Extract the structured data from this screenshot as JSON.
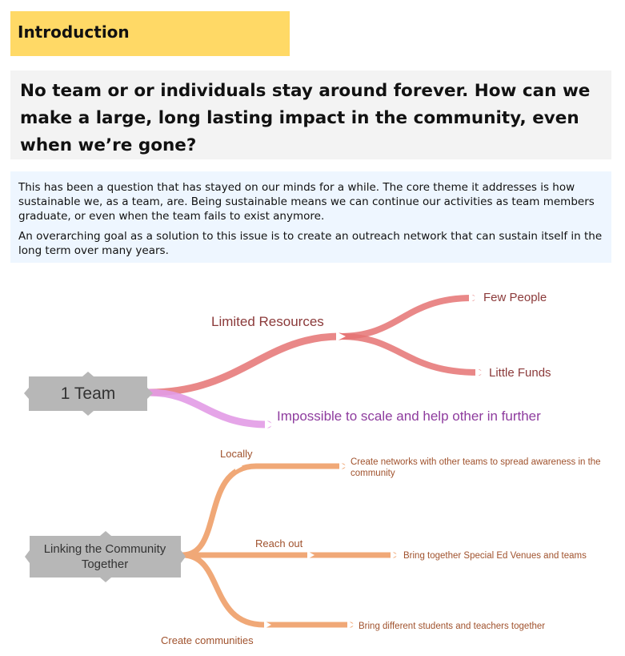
{
  "heading": "Introduction",
  "question": "No team or or individuals stay around forever.  How can we make a large, long lasting impact in the community, even when we’re gone?",
  "paragraphs": [
    "This has been a question that has stayed on our minds for a while. The core theme it addresses is how sustainable we, as a team, are. Being sustainable means we can continue our activities as team members graduate, or even when the team fails to exist anymore.",
    "An overarching goal as a solution to this issue is to create an outreach network that can sustain itself in the long term over many years."
  ],
  "diagram1": {
    "root": "1 Team",
    "branch_resources": "Limited Resources",
    "leaf_people": "Few People",
    "leaf_funds": "Little Funds",
    "branch_scale": "Impossible to scale and help other in further",
    "colors": {
      "resources": "#e57373",
      "scale": "#e29be6",
      "root_fill": "#b7b7b7"
    }
  },
  "diagram2": {
    "root_line1": "Linking the Community",
    "root_line2": "Together",
    "branch_locally": "Locally",
    "leaf_locally_line1": "Create networks with other teams to spread awareness in the",
    "leaf_locally_line2": "community",
    "branch_reach": "Reach out",
    "leaf_reach": "Bring together Special Ed Venues and teams",
    "branch_create": "Create communities",
    "leaf_create": "Bring different students and teachers together",
    "colors": {
      "branch": "#f0a877",
      "root_fill": "#b7b7b7",
      "text": "#a0522d"
    }
  }
}
